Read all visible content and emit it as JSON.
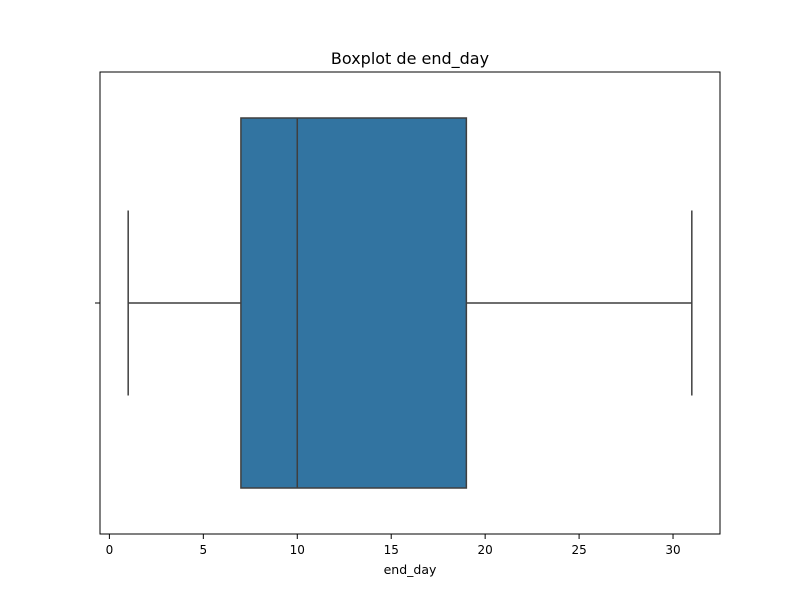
{
  "chart_data": {
    "type": "box",
    "title": "Boxplot de end_day",
    "xlabel": "end_day",
    "ylabel": "",
    "xlim": [
      -0.5,
      32.5
    ],
    "xticks": [
      0,
      5,
      10,
      15,
      20,
      25,
      30
    ],
    "xtick_labels": [
      "0",
      "5",
      "10",
      "15",
      "20",
      "25",
      "30"
    ],
    "grid": false,
    "box": {
      "whisker_low": 1,
      "q1": 7,
      "median": 10,
      "q3": 19,
      "whisker_high": 31
    },
    "colors": {
      "box_fill": "#3274a1",
      "line": "#3f3f3f",
      "axes": "#000000"
    }
  }
}
